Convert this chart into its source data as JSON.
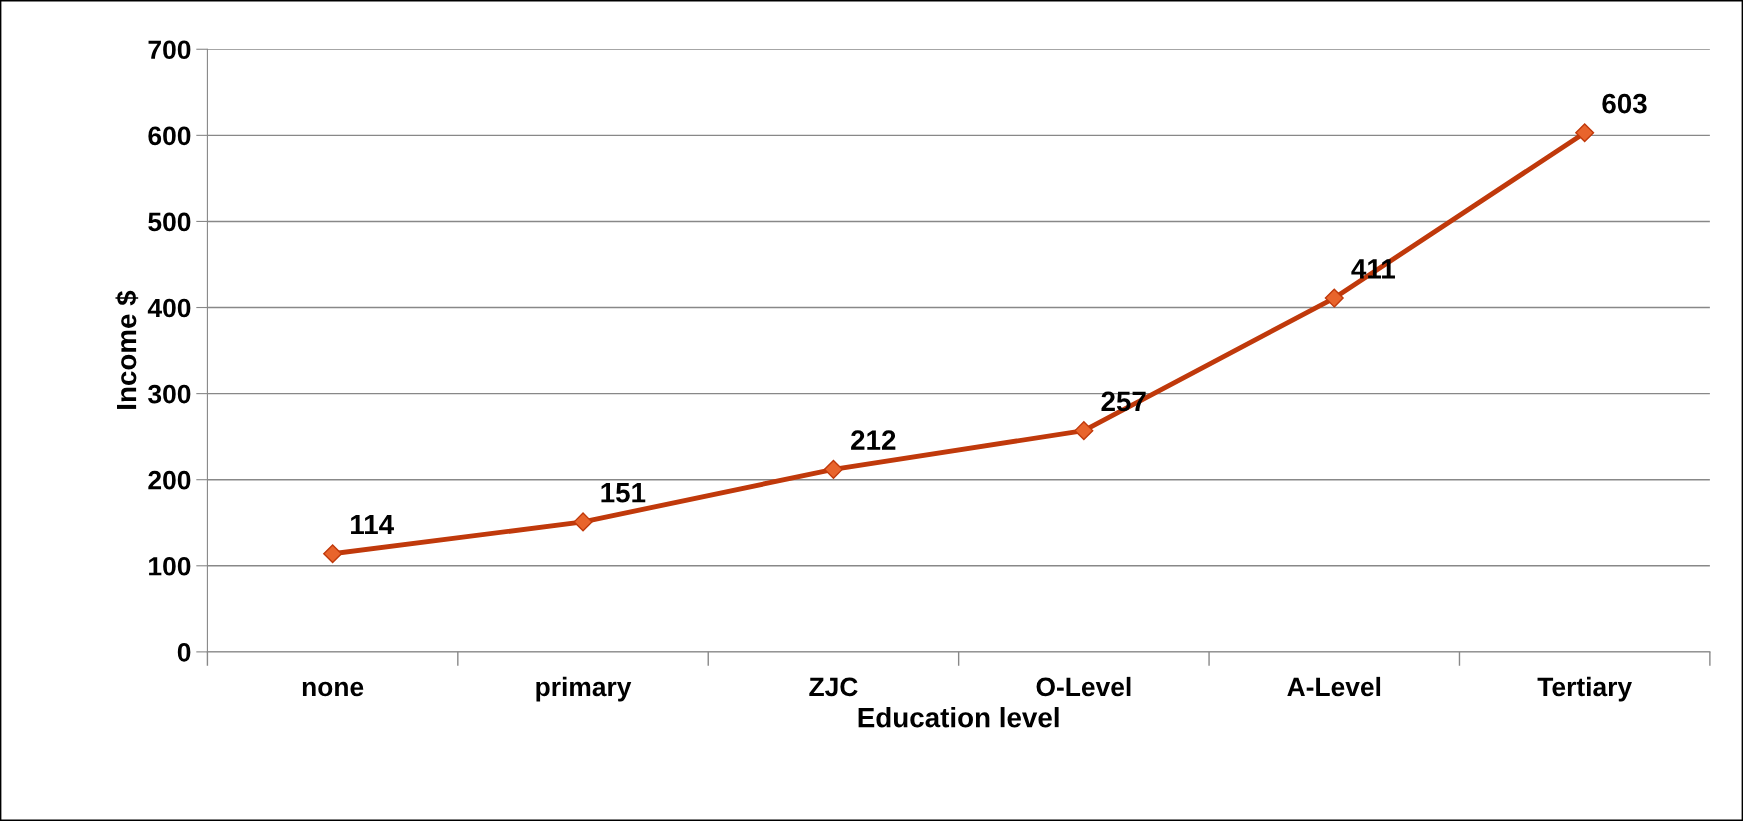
{
  "chart_data": {
    "type": "line",
    "xlabel": "Education level",
    "ylabel": "Income $",
    "categories": [
      "none",
      "primary",
      "ZJC",
      "O-Level",
      "A-Level",
      "Tertiary"
    ],
    "series": [
      {
        "color": "#c0390b",
        "values": [
          114,
          151,
          212,
          257,
          411,
          603
        ]
      }
    ],
    "ylim": [
      0,
      700
    ],
    "yticks": [
      0,
      100,
      200,
      300,
      400,
      500,
      600,
      700
    ],
    "grid": "y",
    "marker": "diamond",
    "line_style": "solid",
    "data_labels": true,
    "legend": false
  }
}
